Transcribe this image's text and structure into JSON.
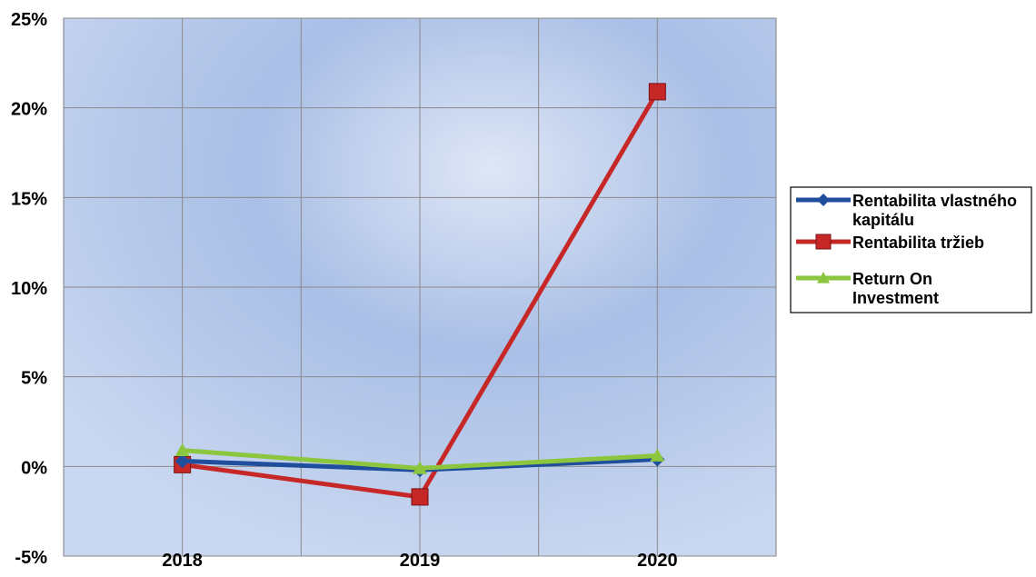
{
  "chart_data": {
    "type": "line",
    "categories": [
      "2018",
      "2019",
      "2020"
    ],
    "yticks": [
      "25%",
      "20%",
      "15%",
      "10%",
      "5%",
      "0%",
      "-5%"
    ],
    "ylim": [
      -5,
      25
    ],
    "grid": true,
    "legend_position": "right",
    "series": [
      {
        "name": "Rentabilita vlastného kapitálu",
        "values": [
          0.3,
          -0.2,
          0.4
        ],
        "color": "#1f4e9c",
        "marker": "diamond"
      },
      {
        "name": "Rentabilita tržieb",
        "values": [
          0.1,
          -1.7,
          20.9
        ],
        "color": "#c62828",
        "marker": "square"
      },
      {
        "name": "Return On Investment",
        "values": [
          0.9,
          -0.1,
          0.6
        ],
        "color": "#8cc63f",
        "marker": "triangle"
      }
    ]
  }
}
